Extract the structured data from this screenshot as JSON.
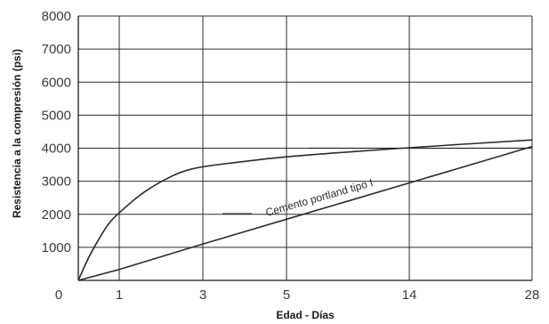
{
  "chart_data": {
    "type": "line",
    "title": "",
    "xlabel": "Edad - Días",
    "ylabel": "Resistencia a la compresión (psi)",
    "x_ticks": [
      "0",
      "1",
      "3",
      "5",
      "14",
      "28"
    ],
    "y_ticks": [
      "1000",
      "2000",
      "3000",
      "4000",
      "5000",
      "6000",
      "7000",
      "8000"
    ],
    "ylim": [
      0,
      8000
    ],
    "grid": true,
    "annotation": "Cemento portland tipo I",
    "series": [
      {
        "x": [
          "0",
          "0.25",
          "0.5",
          "0.75",
          "1",
          "1.5",
          "2",
          "2.5",
          "3",
          "4",
          "5",
          "14",
          "28"
        ],
        "values": [
          0,
          700,
          1250,
          1750,
          2050,
          2600,
          3000,
          3300,
          3450,
          3600,
          3750,
          4020,
          4250
        ]
      },
      {
        "x": [
          "0",
          "1",
          "3",
          "5",
          "14",
          "28"
        ],
        "values": [
          0,
          330,
          1100,
          1850,
          2950,
          4050
        ]
      }
    ],
    "reference_line": {
      "y": 4000,
      "x_from": "5",
      "x_to": "28"
    }
  }
}
